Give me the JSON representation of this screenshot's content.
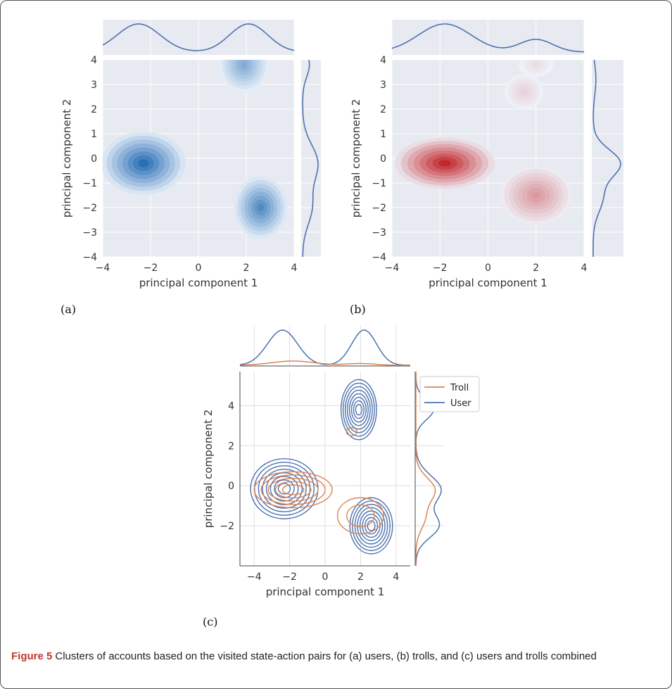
{
  "caption": {
    "label": "Figure 5",
    "text": "Clusters of accounts based on the visited state-action pairs for (a) users, (b) trolls, and (c) users and trolls combined"
  },
  "chart_data": [
    {
      "panel": "(a)",
      "type": "heatmap",
      "description": "Filled 2D KDE with marginal density curves",
      "xlabel": "principal component 1",
      "ylabel": "principal component 2",
      "xlim": [
        -4,
        4
      ],
      "ylim": [
        -4,
        4
      ],
      "xticks": [
        "−4",
        "−2",
        "0",
        "2",
        "4"
      ],
      "yticks": [
        "−4",
        "−3",
        "−2",
        "−1",
        "0",
        "1",
        "2",
        "3",
        "4"
      ],
      "grid": true,
      "colormap": "#2a6fb5",
      "clusters": [
        {
          "x": -2.3,
          "y": -0.2,
          "sx": 1.1,
          "sy": 0.8,
          "peak": 1.0
        },
        {
          "x": 2.6,
          "y": -2.0,
          "sx": 0.7,
          "sy": 0.8,
          "peak": 0.8
        },
        {
          "x": 1.9,
          "y": 3.8,
          "sx": 0.65,
          "sy": 0.7,
          "peak": 0.55
        }
      ],
      "marginal_x": [
        {
          "mu": -2.5,
          "s": 0.9,
          "a": 1.0
        },
        {
          "mu": 2.1,
          "s": 0.8,
          "a": 1.0
        }
      ],
      "marginal_y": [
        {
          "mu": -0.2,
          "s": 0.75,
          "a": 1.0
        },
        {
          "mu": -2.0,
          "s": 0.7,
          "a": 0.6
        },
        {
          "mu": 3.8,
          "s": 0.5,
          "a": 0.45
        }
      ]
    },
    {
      "panel": "(b)",
      "type": "heatmap",
      "description": "Filled 2D KDE with marginal density curves",
      "xlabel": "principal component 1",
      "ylabel": "principal component 2",
      "xlim": [
        -4,
        4
      ],
      "ylim": [
        -4,
        4
      ],
      "xticks": [
        "−4",
        "−2",
        "0",
        "2",
        "4"
      ],
      "yticks": [
        "−4",
        "−3",
        "−2",
        "−1",
        "0",
        "1",
        "2",
        "3",
        "4"
      ],
      "grid": true,
      "colormap": "#c1272d",
      "clusters": [
        {
          "x": -1.8,
          "y": -0.2,
          "sx": 1.3,
          "sy": 0.65,
          "peak": 1.0
        },
        {
          "x": 2.0,
          "y": -1.5,
          "sx": 0.95,
          "sy": 0.75,
          "peak": 0.45
        },
        {
          "x": 1.5,
          "y": 2.7,
          "sx": 0.5,
          "sy": 0.45,
          "peak": 0.18
        },
        {
          "x": 2.0,
          "y": 3.8,
          "sx": 0.45,
          "sy": 0.3,
          "peak": 0.12
        }
      ],
      "marginal_x": [
        {
          "mu": -1.8,
          "s": 1.1,
          "a": 1.0
        },
        {
          "mu": 2.0,
          "s": 0.7,
          "a": 0.45
        }
      ],
      "marginal_y": [
        {
          "mu": -0.2,
          "s": 0.55,
          "a": 1.0
        },
        {
          "mu": -1.6,
          "s": 0.6,
          "a": 0.35
        },
        {
          "mu": 3.2,
          "s": 0.6,
          "a": 0.1
        }
      ]
    },
    {
      "panel": "(c)",
      "type": "line",
      "description": "2D KDE contour lines with marginal density curves",
      "xlabel": "principal component 1",
      "ylabel": "principal component 2",
      "xlim": [
        -4.8,
        4.8
      ],
      "ylim": [
        -4.0,
        5.7
      ],
      "xticks": [
        "−4",
        "−2",
        "0",
        "2",
        "4"
      ],
      "yticks": [
        "−2",
        "0",
        "2",
        "4"
      ],
      "grid": true,
      "legend": {
        "position": "top-right",
        "entries": [
          {
            "name": "Troll",
            "color": "#dd8452"
          },
          {
            "name": "User",
            "color": "#4c72b0"
          }
        ]
      },
      "series": [
        {
          "name": "User",
          "color": "#4c72b0",
          "clusters": [
            {
              "x": -2.3,
              "y": -0.15,
              "rx": 1.9,
              "ry": 1.5,
              "rings": 8
            },
            {
              "x": 2.6,
              "y": -2.0,
              "rx": 1.2,
              "ry": 1.4,
              "rings": 8
            },
            {
              "x": 1.9,
              "y": 3.8,
              "rx": 1.0,
              "ry": 1.5,
              "rings": 8
            }
          ],
          "marginal_x": [
            {
              "mu": -2.4,
              "s": 0.85,
              "a": 1.0
            },
            {
              "mu": 2.2,
              "s": 0.7,
              "a": 1.0
            }
          ],
          "marginal_y": [
            {
              "mu": -0.2,
              "s": 0.7,
              "a": 1.0
            },
            {
              "mu": -2.0,
              "s": 0.6,
              "a": 0.9
            },
            {
              "mu": 3.8,
              "s": 0.5,
              "a": 0.7
            }
          ]
        },
        {
          "name": "Troll",
          "color": "#dd8452",
          "clusters": [
            {
              "x": -1.8,
              "y": -0.2,
              "rx": 2.2,
              "ry": 0.9,
              "rings": 5
            },
            {
              "x": 2.0,
              "y": -1.5,
              "rx": 1.3,
              "ry": 0.9,
              "rings": 2
            },
            {
              "x": 1.5,
              "y": 2.7,
              "rx": 0.3,
              "ry": 0.2,
              "rings": 1
            }
          ],
          "marginal_x": [
            {
              "mu": -1.8,
              "s": 1.2,
              "a": 0.12
            },
            {
              "mu": 2.0,
              "s": 0.8,
              "a": 0.05
            }
          ],
          "marginal_y": [
            {
              "mu": -0.2,
              "s": 0.6,
              "a": 0.75
            },
            {
              "mu": -1.6,
              "s": 0.6,
              "a": 0.35
            }
          ]
        }
      ]
    }
  ],
  "panel_labels": [
    "(a)",
    "(b)",
    "(c)"
  ]
}
